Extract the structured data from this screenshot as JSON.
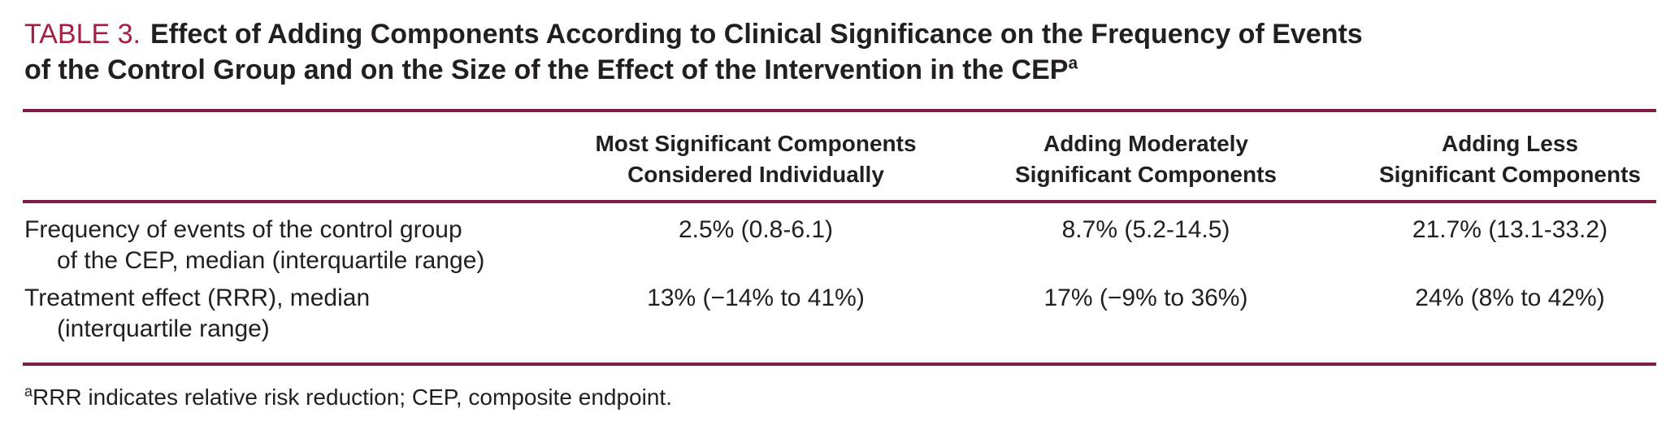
{
  "table": {
    "title_label": "TABLE 3.",
    "title_line1": "Effect of Adding Components According to Clinical Significance on the Frequency of Events",
    "title_line2": "of the Control Group and on the Size of the Effect of the Intervention in the CEP",
    "title_superscript": "a",
    "columns": [
      {
        "line1": "Most Significant Components",
        "line2": "Considered Individually"
      },
      {
        "line1": "Adding Moderately",
        "line2": "Significant Components"
      },
      {
        "line1": "Adding Less",
        "line2": "Significant Components"
      }
    ],
    "rows": [
      {
        "label_line1": "Frequency of events of the control group",
        "label_line2": "of the CEP, median (interquartile range)",
        "values": [
          "2.5% (0.8-6.1)",
          "8.7% (5.2-14.5)",
          "21.7% (13.1-33.2)"
        ]
      },
      {
        "label_line1": "Treatment effect (RRR), median",
        "label_line2": "(interquartile range)",
        "values": [
          "13% (−14% to 41%)",
          "17% (−9% to 36%)",
          "24% (8% to 42%)"
        ]
      }
    ],
    "footnote_superscript": "a",
    "footnote_text": "RRR indicates relative risk reduction; CEP, composite endpoint.",
    "colors": {
      "title_accent": "#a81e41",
      "rule": "#7b1e45",
      "text": "#231f20",
      "background": "#ffffff"
    }
  }
}
